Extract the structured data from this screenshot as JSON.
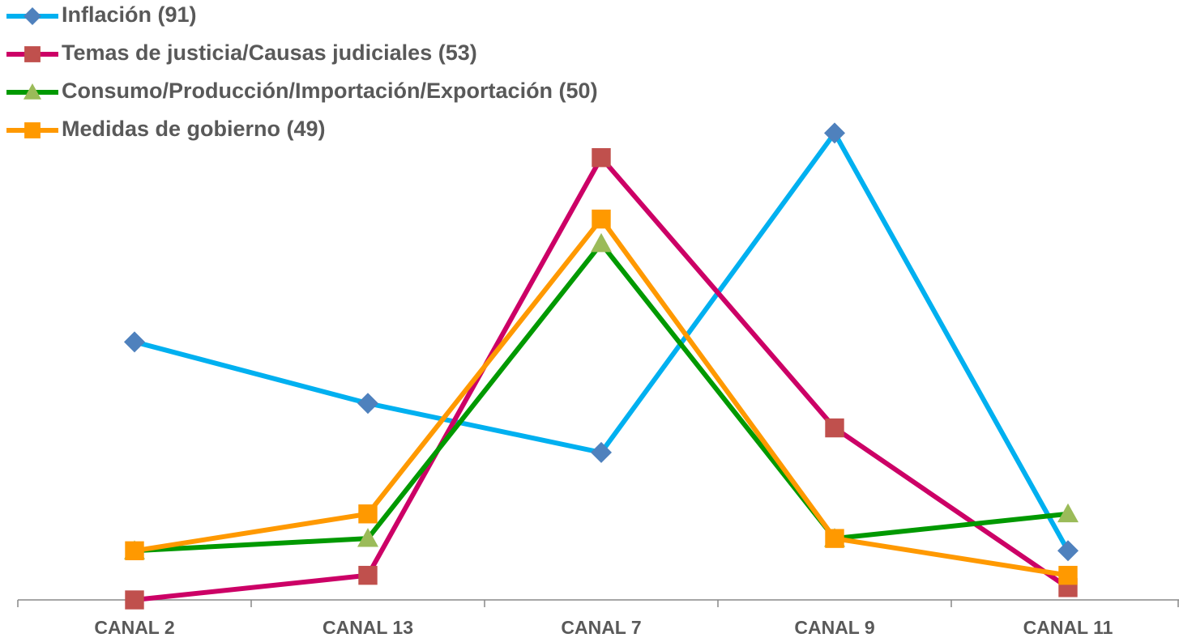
{
  "chart_data": {
    "type": "line",
    "categories": [
      "CANAL 2",
      "CANAL 13",
      "CANAL 7",
      "CANAL 9",
      "CANAL 11"
    ],
    "series": [
      {
        "name": "Inflación (91)",
        "color": "#00b0f0",
        "marker_color": "#4f81bd",
        "marker": "diamond",
        "values": [
          21,
          16,
          12,
          38,
          4
        ]
      },
      {
        "name": "Temas de justicia/Causas judiciales (53)",
        "color": "#cc0066",
        "marker_color": "#c0504d",
        "marker": "square",
        "values": [
          0,
          2,
          36,
          14,
          1
        ]
      },
      {
        "name": "Consumo/Producción/Importación/Exportación (50)",
        "color": "#009900",
        "marker_color": "#9bbb59",
        "marker": "triangle",
        "values": [
          4,
          5,
          29,
          5,
          7
        ]
      },
      {
        "name": "Medidas de gobierno (49)",
        "color": "#ff9900",
        "marker_color": "#ff9900",
        "marker": "square",
        "values": [
          4,
          7,
          31,
          5,
          2
        ]
      }
    ],
    "ylim": [
      0,
      40
    ],
    "legend": "top-left"
  }
}
